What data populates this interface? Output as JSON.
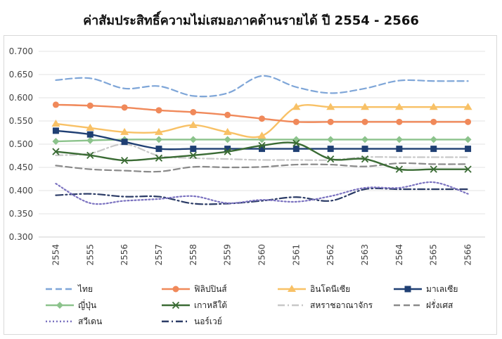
{
  "chart_data": {
    "type": "line",
    "title": "ค่าสัมประสิทธิ์ความไม่เสมอภาคด้านรายได้ ปี 2554 - 2566",
    "xlabel": "",
    "ylabel": "",
    "categories": [
      "2554",
      "2555",
      "2556",
      "2557",
      "2558",
      "2559",
      "2560",
      "2561",
      "2562",
      "2563",
      "2564",
      "2565",
      "2566"
    ],
    "ylim": [
      0.3,
      0.7
    ],
    "yticks": [
      "0.300",
      "0.350",
      "0.400",
      "0.450",
      "0.500",
      "0.550",
      "0.600",
      "0.650",
      "0.700"
    ],
    "grid": true,
    "legend": "bottom",
    "series": [
      {
        "name": "ไทย",
        "color": "#7fa6d8",
        "dash": "dash",
        "marker": "none",
        "values": [
          0.638,
          0.642,
          0.62,
          0.625,
          0.604,
          0.61,
          0.647,
          0.623,
          0.61,
          0.62,
          0.637,
          0.636,
          0.636
        ]
      },
      {
        "name": "ฟิลิปปินส์",
        "color": "#f0895a",
        "dash": "solid",
        "marker": "circle",
        "values": [
          0.585,
          0.583,
          0.579,
          0.573,
          0.569,
          0.563,
          0.555,
          0.548,
          0.548,
          0.548,
          0.548,
          0.548,
          0.548
        ]
      },
      {
        "name": "อินโดนีเซีย",
        "color": "#f8c166",
        "dash": "solid",
        "marker": "triangle",
        "values": [
          0.544,
          0.535,
          0.526,
          0.526,
          0.541,
          0.526,
          0.518,
          0.58,
          0.58,
          0.58,
          0.58,
          0.58,
          0.58
        ]
      },
      {
        "name": "มาเลเซีย",
        "color": "#1f3f73",
        "dash": "solid",
        "marker": "square",
        "values": [
          0.529,
          0.521,
          0.505,
          0.49,
          0.49,
          0.49,
          0.49,
          0.49,
          0.49,
          0.49,
          0.49,
          0.49,
          0.49
        ]
      },
      {
        "name": "ญี่ปุ่น",
        "color": "#8cc38c",
        "dash": "solid",
        "marker": "diamond",
        "values": [
          0.506,
          0.508,
          0.51,
          0.51,
          0.51,
          0.51,
          0.51,
          0.51,
          0.51,
          0.51,
          0.51,
          0.51,
          0.51
        ]
      },
      {
        "name": "เกาหลีใต้",
        "color": "#3a6b34",
        "dash": "solid",
        "marker": "x",
        "values": [
          0.484,
          0.476,
          0.465,
          0.47,
          0.476,
          0.484,
          0.497,
          0.502,
          0.468,
          0.468,
          0.446,
          0.446,
          0.446
        ]
      },
      {
        "name": "สหราชอาณาจักร",
        "color": "#c8c8c8",
        "dash": "dashdot",
        "marker": "none",
        "values": [
          0.476,
          0.48,
          0.5,
          0.475,
          0.47,
          0.468,
          0.466,
          0.466,
          0.466,
          0.472,
          0.472,
          0.472,
          0.472
        ]
      },
      {
        "name": "ฝรั่งเศส",
        "color": "#8a8a8a",
        "dash": "dash",
        "marker": "none",
        "values": [
          0.454,
          0.446,
          0.443,
          0.441,
          0.451,
          0.45,
          0.451,
          0.456,
          0.456,
          0.452,
          0.459,
          0.457,
          0.457
        ]
      },
      {
        "name": "สวีเดน",
        "color": "#7b72c0",
        "dash": "dot",
        "marker": "none",
        "values": [
          0.415,
          0.373,
          0.378,
          0.382,
          0.388,
          0.373,
          0.38,
          0.376,
          0.388,
          0.406,
          0.406,
          0.418,
          0.393
        ]
      },
      {
        "name": "นอร์เวย์",
        "color": "#2b3b66",
        "dash": "dashdot",
        "marker": "none",
        "values": [
          0.39,
          0.393,
          0.387,
          0.387,
          0.372,
          0.372,
          0.378,
          0.386,
          0.378,
          0.403,
          0.403,
          0.403,
          0.403
        ]
      }
    ]
  }
}
